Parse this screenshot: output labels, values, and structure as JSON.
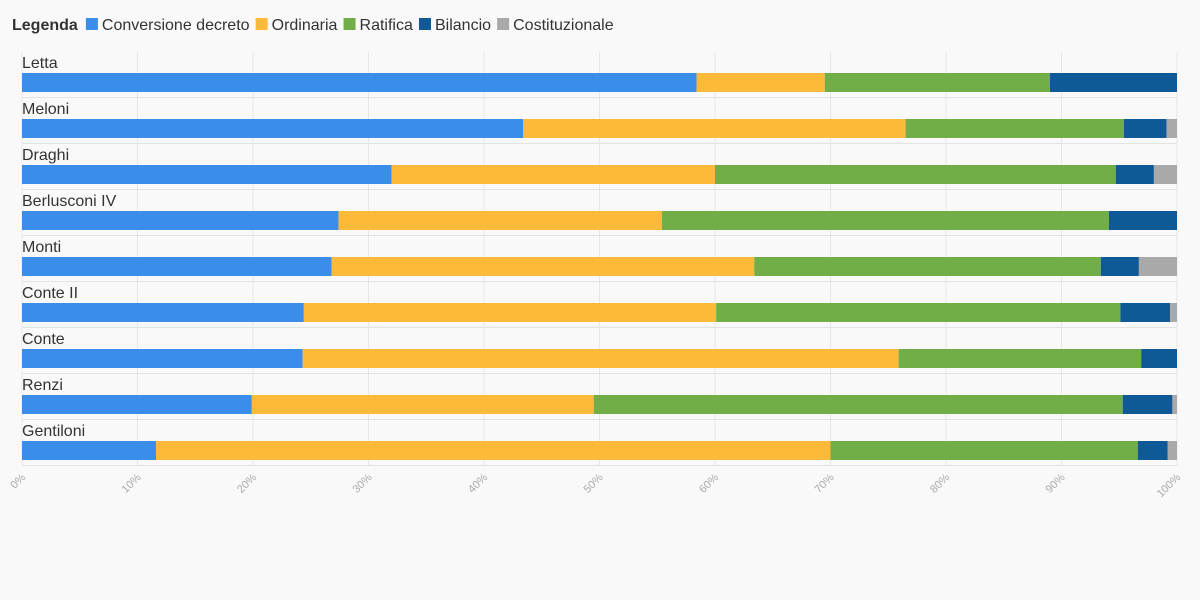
{
  "chart_data": {
    "type": "bar",
    "orientation": "horizontal",
    "stacked": "percent",
    "legend_title": "Legenda",
    "legend_position": "top-left",
    "categories": [
      "Letta",
      "Meloni",
      "Draghi",
      "Berlusconi IV",
      "Monti",
      "Conte II",
      "Conte",
      "Renzi",
      "Gentiloni"
    ],
    "series": [
      {
        "name": "Conversione decreto",
        "color": "#3a8de8",
        "values": [
          58.4,
          43.4,
          32.0,
          27.4,
          26.8,
          24.4,
          24.3,
          19.9,
          11.6
        ]
      },
      {
        "name": "Ordinaria",
        "color": "#fdb93a",
        "values": [
          11.1,
          33.1,
          28.0,
          28.0,
          36.6,
          35.7,
          51.6,
          29.6,
          58.4
        ]
      },
      {
        "name": "Ratifica",
        "color": "#72ae48",
        "values": [
          19.5,
          18.9,
          34.7,
          38.7,
          30.0,
          35.0,
          21.0,
          45.8,
          26.6
        ]
      },
      {
        "name": "Bilancio",
        "color": "#0f5a96",
        "values": [
          11.0,
          3.7,
          3.3,
          5.9,
          3.3,
          4.3,
          3.1,
          4.3,
          2.6
        ]
      },
      {
        "name": "Costituzionale",
        "color": "#a9a9a9",
        "values": [
          0.0,
          0.9,
          2.0,
          0.0,
          3.3,
          0.6,
          0.0,
          0.4,
          0.8
        ]
      }
    ],
    "xlim": [
      0,
      100
    ],
    "x_ticks": [
      "0%",
      "10%",
      "20%",
      "30%",
      "40%",
      "50%",
      "60%",
      "70%",
      "80%",
      "90%",
      "100%"
    ],
    "grid": true
  }
}
